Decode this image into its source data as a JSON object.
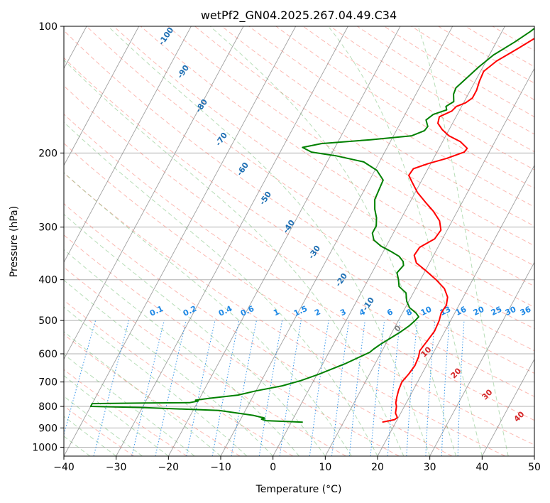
{
  "chart_data": {
    "type": "line",
    "title": "wetPf2_GN04.2025.267.04.49.C34",
    "xlabel": "Temperature (°C)",
    "ylabel": "Pressure (hPa)",
    "xlim": [
      -40,
      50
    ],
    "ylim": [
      1050,
      100
    ],
    "y_scale": "log",
    "grid": true,
    "x_ticks": [
      "−40",
      "−30",
      "−20",
      "−10",
      "0",
      "10",
      "20",
      "30",
      "40",
      "50"
    ],
    "x_tick_values": [
      -40,
      -30,
      -20,
      -10,
      0,
      10,
      20,
      30,
      40,
      50
    ],
    "y_ticks": [
      "100",
      "200",
      "300",
      "400",
      "500",
      "600",
      "700",
      "800",
      "900",
      "1000"
    ],
    "y_tick_values": [
      100,
      200,
      300,
      400,
      500,
      600,
      700,
      800,
      900,
      1000
    ],
    "series": [
      {
        "color": "#ff0000",
        "points": [
          [
            17.4,
            872
          ],
          [
            18.5,
            866
          ],
          [
            19.5,
            860
          ],
          [
            19.8,
            850
          ],
          [
            19.0,
            830
          ],
          [
            18.5,
            800
          ],
          [
            18.0,
            785
          ],
          [
            17.6,
            760
          ],
          [
            17.2,
            730
          ],
          [
            17.0,
            700
          ],
          [
            17.5,
            670
          ],
          [
            17.8,
            640
          ],
          [
            17.6,
            610
          ],
          [
            17.2,
            590
          ],
          [
            17.6,
            560
          ],
          [
            18.0,
            530
          ],
          [
            17.8,
            500
          ],
          [
            17.4,
            480
          ],
          [
            17.6,
            460
          ],
          [
            17.0,
            440
          ],
          [
            15.5,
            420
          ],
          [
            13.0,
            400
          ],
          [
            10.0,
            380
          ],
          [
            7.5,
            365
          ],
          [
            6.3,
            350
          ],
          [
            6.5,
            335
          ],
          [
            8.5,
            320
          ],
          [
            8.8,
            305
          ],
          [
            7.6,
            290
          ],
          [
            5.4,
            275
          ],
          [
            3.0,
            262
          ],
          [
            0.4,
            248
          ],
          [
            -1.6,
            235
          ],
          [
            -3.0,
            226
          ],
          [
            -2.8,
            218
          ],
          [
            -0.5,
            212
          ],
          [
            2.5,
            206
          ],
          [
            5.2,
            199
          ],
          [
            5.4,
            195
          ],
          [
            3.4,
            188
          ],
          [
            0.6,
            182
          ],
          [
            -1.3,
            176
          ],
          [
            -2.8,
            170
          ],
          [
            -3.2,
            164
          ],
          [
            -1.4,
            159
          ],
          [
            -1.0,
            155
          ],
          [
            0.4,
            152
          ],
          [
            1.2,
            148
          ],
          [
            1.2,
            142
          ],
          [
            0.8,
            135
          ],
          [
            0.6,
            128
          ],
          [
            2.0,
            121
          ],
          [
            4.8,
            113
          ],
          [
            7.6,
            105
          ],
          [
            11.0,
            100
          ]
        ]
      },
      {
        "color": "#008000",
        "points": [
          [
            2.2,
            872
          ],
          [
            -1.0,
            869
          ],
          [
            -5.0,
            865
          ],
          [
            -6.0,
            858
          ],
          [
            -5.5,
            853
          ],
          [
            -8.0,
            840
          ],
          [
            -15.0,
            818
          ],
          [
            -30.0,
            805
          ],
          [
            -40.0,
            800
          ],
          [
            -40.0,
            788
          ],
          [
            -30.0,
            785
          ],
          [
            -21.5,
            784
          ],
          [
            -20.0,
            777
          ],
          [
            -20.6,
            773
          ],
          [
            -18.0,
            765
          ],
          [
            -13.0,
            752
          ],
          [
            -10.0,
            735
          ],
          [
            -5.5,
            715
          ],
          [
            -2.5,
            695
          ],
          [
            0.2,
            672
          ],
          [
            2.5,
            650
          ],
          [
            4.4,
            632
          ],
          [
            6.2,
            612
          ],
          [
            7.8,
            595
          ],
          [
            8.2,
            585
          ],
          [
            9.0,
            570
          ],
          [
            10.0,
            555
          ],
          [
            11.6,
            532
          ],
          [
            12.6,
            515
          ],
          [
            13.2,
            500
          ],
          [
            13.5,
            490
          ],
          [
            12.6,
            480
          ],
          [
            10.8,
            466
          ],
          [
            9.6,
            450
          ],
          [
            8.6,
            430
          ],
          [
            6.6,
            415
          ],
          [
            5.8,
            400
          ],
          [
            4.8,
            385
          ],
          [
            5.3,
            370
          ],
          [
            4.8,
            362
          ],
          [
            3.5,
            352
          ],
          [
            1.5,
            343
          ],
          [
            -1.0,
            333
          ],
          [
            -3.0,
            322
          ],
          [
            -4.0,
            310
          ],
          [
            -4.0,
            298
          ],
          [
            -4.8,
            285
          ],
          [
            -6.0,
            272
          ],
          [
            -7.0,
            258
          ],
          [
            -7.2,
            245
          ],
          [
            -7.4,
            232
          ],
          [
            -9.6,
            220
          ],
          [
            -13.0,
            210
          ],
          [
            -19.0,
            203
          ],
          [
            -24.0,
            199
          ],
          [
            -26.2,
            194
          ],
          [
            -23.0,
            190
          ],
          [
            -14.0,
            186
          ],
          [
            -6.5,
            182
          ],
          [
            -4.6,
            177
          ],
          [
            -4.4,
            173
          ],
          [
            -5.4,
            167
          ],
          [
            -4.6,
            162
          ],
          [
            -2.5,
            158
          ],
          [
            -3.0,
            155
          ],
          [
            -2.0,
            151
          ],
          [
            -2.8,
            145
          ],
          [
            -3.0,
            140
          ],
          [
            -2.0,
            133
          ],
          [
            -0.8,
            125
          ],
          [
            0.8,
            117
          ],
          [
            3.5,
            109
          ],
          [
            5.4,
            103
          ],
          [
            6.2,
            100
          ]
        ]
      }
    ],
    "isotherm_labels": [
      "-100",
      "-90",
      "-80",
      "-70",
      "-60",
      "-50",
      "-40",
      "-30",
      "-20",
      "-10"
    ],
    "isotherm_values": [
      -100,
      -90,
      -80,
      -70,
      -60,
      -50,
      -40,
      -30,
      -20,
      -10
    ],
    "mixing_ratio_labels": [
      "0.1",
      "0.2",
      "0.4",
      "0.6",
      "1",
      "1.5",
      "2",
      "3",
      "4",
      "6",
      "8",
      "10",
      "13",
      "16",
      "20",
      "25",
      "30",
      "36"
    ],
    "mixing_ratio_values": [
      0.1,
      0.2,
      0.4,
      0.6,
      1,
      1.5,
      2,
      3,
      4,
      6,
      8,
      10,
      13,
      16,
      20,
      25,
      30,
      36
    ],
    "red_isotherm_labels": [
      "0",
      "10",
      "20",
      "30",
      "40"
    ],
    "red_isotherm_values": [
      0,
      10,
      20,
      30,
      40
    ],
    "colors": {
      "isotherm": "#808080",
      "dry_adiabat": "#fa8072",
      "moist_adiabat": "#5fb35f",
      "mixing_ratio": "#1e88e5",
      "isotherm_label": "#1f6fb3",
      "mixing_label": "#1e88e5",
      "red_label": "#d62728"
    }
  }
}
